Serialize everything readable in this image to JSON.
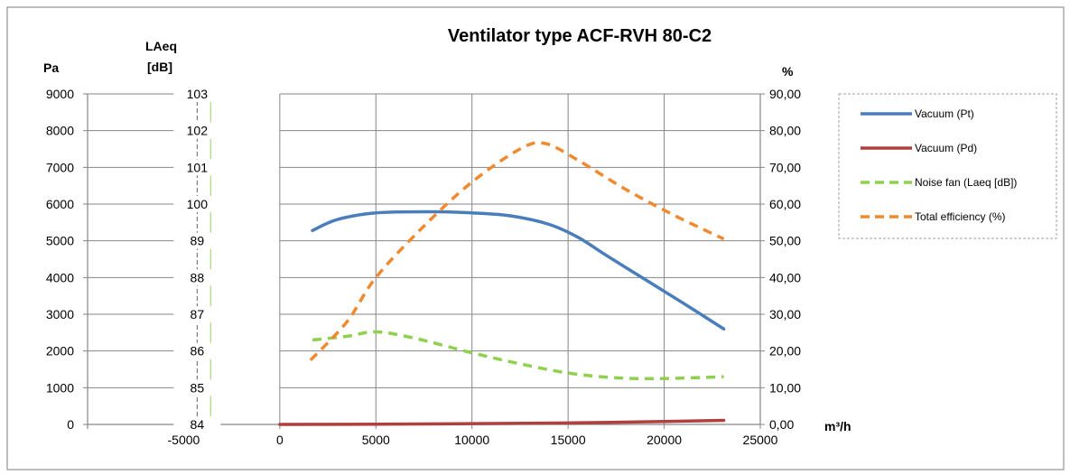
{
  "chart_data": {
    "type": "line",
    "title": "Ventilator type ACF-RVH 80-C2",
    "x_axis": {
      "label": "m³/h",
      "ticks": [
        -5000,
        0,
        5000,
        10000,
        15000,
        20000,
        25000
      ],
      "range": [
        -10000,
        25000
      ]
    },
    "y_axes": {
      "pressure": {
        "label": "Pa",
        "ticks": [
          0,
          1000,
          2000,
          3000,
          4000,
          5000,
          6000,
          7000,
          8000,
          9000
        ],
        "range": [
          0,
          9000
        ]
      },
      "noise": {
        "label_line1": "LAeq",
        "label_line2": "[dB]",
        "ticks": [
          "84",
          "85",
          "86",
          "87",
          "88",
          "89",
          "100",
          "101",
          "102",
          "103"
        ]
      },
      "efficiency": {
        "label": "%",
        "ticks": [
          "0,00",
          "10,00",
          "20,00",
          "30,00",
          "40,00",
          "50,00",
          "60,00",
          "70,00",
          "80,00",
          "90,00"
        ],
        "range": [
          0,
          90
        ]
      }
    },
    "series": [
      {
        "name": "Vacuum (Pt)",
        "axis": "pressure",
        "color": "#4a7ebb",
        "dash": "solid",
        "points": [
          [
            1700,
            5280
          ],
          [
            3000,
            5580
          ],
          [
            5000,
            5760
          ],
          [
            8000,
            5790
          ],
          [
            10000,
            5760
          ],
          [
            12000,
            5680
          ],
          [
            14000,
            5450
          ],
          [
            15500,
            5100
          ],
          [
            17000,
            4600
          ],
          [
            19000,
            3950
          ],
          [
            21000,
            3300
          ],
          [
            23100,
            2600
          ]
        ]
      },
      {
        "name": "Vacuum (Pd)",
        "axis": "pressure",
        "color": "#b0403e",
        "dash": "solid",
        "points": [
          [
            0,
            0
          ],
          [
            5000,
            5
          ],
          [
            10000,
            20
          ],
          [
            15000,
            40
          ],
          [
            20000,
            80
          ],
          [
            23100,
            110
          ]
        ]
      },
      {
        "name": "Noise fan (Laeq [dB])",
        "axis": "pressure",
        "color": "#8fd04f",
        "dash": "dashed",
        "points": [
          [
            1700,
            2300
          ],
          [
            3500,
            2400
          ],
          [
            5000,
            2520
          ],
          [
            7000,
            2350
          ],
          [
            10000,
            1950
          ],
          [
            12500,
            1650
          ],
          [
            15000,
            1400
          ],
          [
            17500,
            1270
          ],
          [
            20000,
            1250
          ],
          [
            23100,
            1300
          ]
        ]
      },
      {
        "name": "Total efficiency (%)",
        "axis": "efficiency",
        "color": "#f08a30",
        "dash": "dashed",
        "points": [
          [
            1600,
            17.5
          ],
          [
            3500,
            28
          ],
          [
            5000,
            40
          ],
          [
            7500,
            54
          ],
          [
            10000,
            66
          ],
          [
            12500,
            75
          ],
          [
            13800,
            76.5
          ],
          [
            15500,
            72
          ],
          [
            18000,
            64
          ],
          [
            20500,
            57
          ],
          [
            23100,
            50.5
          ]
        ]
      }
    ],
    "legend": "top-right",
    "grid": true
  }
}
